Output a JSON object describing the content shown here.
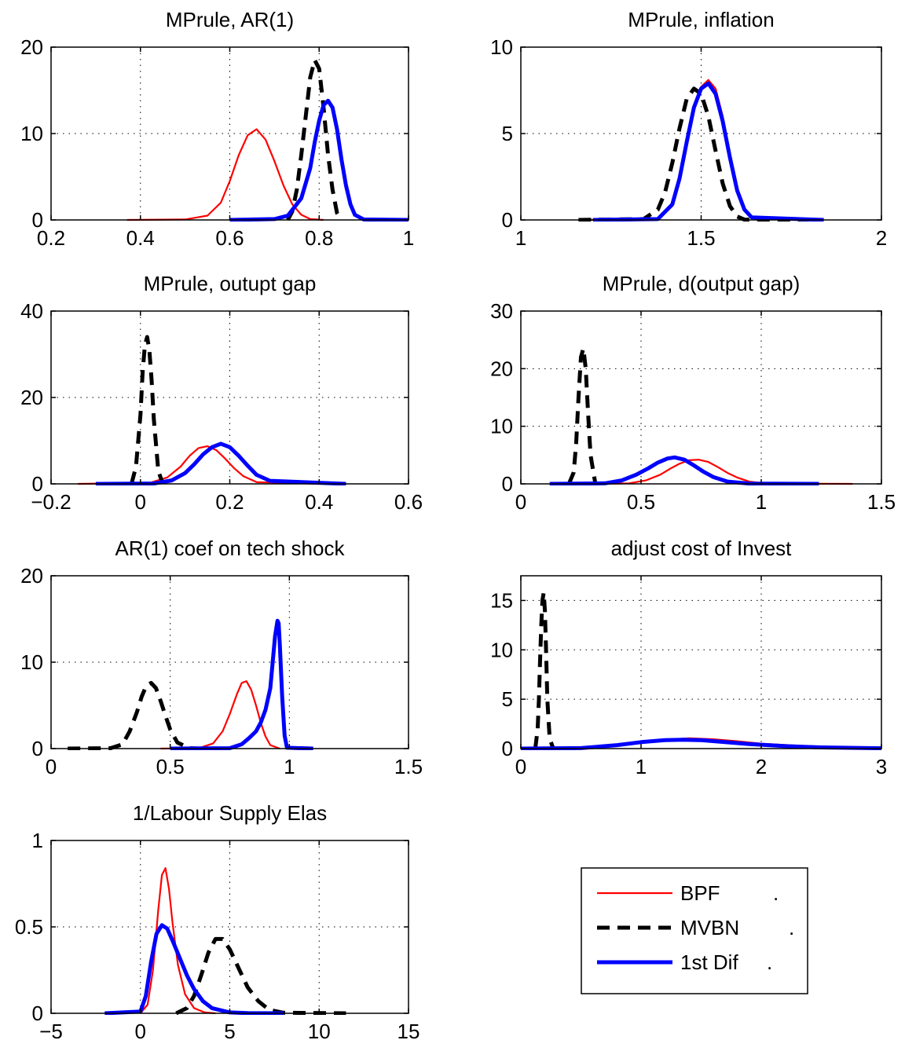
{
  "colors": {
    "BPF": "#ff0000",
    "MVBN": "#000000",
    "1st Dif": "#0000ff"
  },
  "chart_data": [
    {
      "type": "line",
      "title": "MPrule, AR(1)",
      "xlim": [
        0.2,
        1
      ],
      "ylim": [
        0,
        20
      ],
      "xticks": [
        0.2,
        0.4,
        0.6,
        0.8,
        1
      ],
      "xtick_labels": [
        "0.2",
        "0.4",
        "0.6",
        "0.8",
        "1"
      ],
      "yticks": [
        0,
        10,
        20
      ],
      "ytick_labels": [
        "0",
        "10",
        "20"
      ],
      "grid": true,
      "series": [
        {
          "name": "BPF",
          "color": "#ff0000",
          "style": "solid",
          "width": 2.2,
          "x": [
            0.37,
            0.5,
            0.55,
            0.58,
            0.6,
            0.62,
            0.64,
            0.66,
            0.68,
            0.7,
            0.72,
            0.74,
            0.76,
            0.78,
            0.81
          ],
          "y": [
            0,
            0.05,
            0.5,
            2,
            4.5,
            7.5,
            9.8,
            10.5,
            9.3,
            6.8,
            4,
            1.8,
            0.6,
            0.1,
            0
          ]
        },
        {
          "name": "MVBN",
          "color": "#000000",
          "style": "dashed",
          "width": 5,
          "x": [
            0.73,
            0.74,
            0.75,
            0.76,
            0.77,
            0.78,
            0.79,
            0.8,
            0.81,
            0.82,
            0.83,
            0.84,
            0.85
          ],
          "y": [
            0,
            1,
            3.5,
            7.5,
            12,
            16.5,
            18.5,
            17.5,
            13,
            7.5,
            3.5,
            0.8,
            0
          ]
        },
        {
          "name": "1st Dif",
          "color": "#0000ff",
          "style": "solid",
          "width": 5,
          "x": [
            0.6,
            0.7,
            0.73,
            0.76,
            0.78,
            0.79,
            0.8,
            0.81,
            0.82,
            0.83,
            0.84,
            0.85,
            0.86,
            0.87,
            0.88,
            0.9,
            1
          ],
          "y": [
            0,
            0.1,
            0.5,
            2.5,
            6,
            9,
            11.5,
            13.3,
            13.8,
            13,
            10.5,
            7,
            4,
            1.8,
            0.6,
            0.05,
            0
          ]
        }
      ]
    },
    {
      "type": "line",
      "title": "MPrule, inflation",
      "xlim": [
        1,
        2
      ],
      "ylim": [
        0,
        10
      ],
      "xticks": [
        1,
        1.5,
        2
      ],
      "xtick_labels": [
        "1",
        "1.5",
        "2"
      ],
      "yticks": [
        0,
        5,
        10
      ],
      "ytick_labels": [
        "0",
        "5",
        "10"
      ],
      "grid": true,
      "series": [
        {
          "name": "BPF",
          "color": "#ff0000",
          "style": "solid",
          "width": 2.2,
          "x": [
            1.16,
            1.38,
            1.42,
            1.44,
            1.46,
            1.48,
            1.5,
            1.52,
            1.54,
            1.56,
            1.58,
            1.6,
            1.62,
            1.64,
            1.84
          ],
          "y": [
            0,
            0.05,
            0.8,
            2.2,
            4.3,
            6.4,
            7.7,
            8.1,
            7.6,
            6,
            3.8,
            1.8,
            0.6,
            0.1,
            0
          ]
        },
        {
          "name": "MVBN",
          "color": "#000000",
          "style": "dashed",
          "width": 5,
          "x": [
            1.16,
            1.34,
            1.38,
            1.4,
            1.42,
            1.44,
            1.46,
            1.48,
            1.5,
            1.52,
            1.54,
            1.56,
            1.58,
            1.6,
            1.62,
            1.8
          ],
          "y": [
            0,
            0.05,
            0.6,
            1.6,
            3.3,
            5.3,
            7,
            7.6,
            7.3,
            6,
            4,
            2.1,
            0.8,
            0.2,
            0.02,
            0
          ]
        },
        {
          "name": "1st Dif",
          "color": "#0000ff",
          "style": "solid",
          "width": 5,
          "x": [
            1.2,
            1.38,
            1.42,
            1.44,
            1.46,
            1.48,
            1.5,
            1.52,
            1.54,
            1.56,
            1.58,
            1.6,
            1.62,
            1.64,
            1.84
          ],
          "y": [
            0,
            0.05,
            0.9,
            2.4,
            4.5,
            6.5,
            7.6,
            7.9,
            7.3,
            5.7,
            3.6,
            1.7,
            0.6,
            0.15,
            0
          ]
        }
      ]
    },
    {
      "type": "line",
      "title": "MPrule, outupt gap",
      "xlim": [
        -0.2,
        0.6
      ],
      "ylim": [
        0,
        40
      ],
      "xticks": [
        -0.2,
        0,
        0.2,
        0.4,
        0.6
      ],
      "xtick_labels": [
        "−0.2",
        "0",
        "0.2",
        "0.4",
        "0.6"
      ],
      "yticks": [
        0,
        20,
        40
      ],
      "ytick_labels": [
        "0",
        "20",
        "40"
      ],
      "grid": true,
      "series": [
        {
          "name": "BPF",
          "color": "#ff0000",
          "style": "solid",
          "width": 2.2,
          "x": [
            -0.14,
            0.02,
            0.06,
            0.09,
            0.11,
            0.13,
            0.15,
            0.17,
            0.19,
            0.21,
            0.23,
            0.26,
            0.4
          ],
          "y": [
            0,
            0.2,
            1.5,
            4,
            6.5,
            8.3,
            8.7,
            7.8,
            5.8,
            3.6,
            1.8,
            0.4,
            0
          ]
        },
        {
          "name": "MVBN",
          "color": "#000000",
          "style": "dashed",
          "width": 5,
          "x": [
            -0.02,
            -0.01,
            0,
            0.005,
            0.01,
            0.015,
            0.02,
            0.025,
            0.03,
            0.04,
            0.05
          ],
          "y": [
            0,
            4,
            16,
            26,
            32,
            34,
            31,
            24,
            15,
            3,
            0
          ]
        },
        {
          "name": "1st Dif",
          "color": "#0000ff",
          "style": "solid",
          "width": 5,
          "x": [
            -0.1,
            0.03,
            0.07,
            0.1,
            0.12,
            0.14,
            0.16,
            0.18,
            0.2,
            0.22,
            0.24,
            0.26,
            0.29,
            0.46
          ],
          "y": [
            0,
            0.1,
            0.8,
            2.5,
            4.5,
            6.8,
            8.5,
            9.3,
            8.5,
            6.5,
            4.2,
            2.1,
            0.7,
            0
          ]
        }
      ]
    },
    {
      "type": "line",
      "title": "MPrule, d(output gap)",
      "xlim": [
        0,
        1.5
      ],
      "ylim": [
        0,
        30
      ],
      "xticks": [
        0,
        0.5,
        1,
        1.5
      ],
      "xtick_labels": [
        "0",
        "0.5",
        "1",
        "1.5"
      ],
      "yticks": [
        0,
        10,
        20,
        30
      ],
      "ytick_labels": [
        "0",
        "10",
        "20",
        "30"
      ],
      "grid": true,
      "series": [
        {
          "name": "BPF",
          "color": "#ff0000",
          "style": "solid",
          "width": 2.2,
          "x": [
            0.32,
            0.45,
            0.52,
            0.58,
            0.62,
            0.66,
            0.7,
            0.74,
            0.78,
            0.82,
            0.86,
            0.9,
            0.95,
            1.02,
            1.38
          ],
          "y": [
            0,
            0.1,
            0.6,
            1.6,
            2.6,
            3.5,
            4.1,
            4.2,
            3.8,
            2.9,
            1.9,
            1.1,
            0.4,
            0.05,
            0
          ]
        },
        {
          "name": "MVBN",
          "color": "#000000",
          "style": "dashed",
          "width": 5,
          "x": [
            0.2,
            0.22,
            0.23,
            0.24,
            0.25,
            0.26,
            0.27,
            0.28,
            0.29,
            0.31
          ],
          "y": [
            0,
            2,
            7,
            15,
            22,
            23.5,
            20,
            12,
            5,
            0
          ]
        },
        {
          "name": "1st Dif",
          "color": "#0000ff",
          "style": "solid",
          "width": 5,
          "x": [
            0.12,
            0.35,
            0.42,
            0.48,
            0.53,
            0.57,
            0.61,
            0.64,
            0.68,
            0.72,
            0.76,
            0.8,
            0.86,
            0.95,
            1.24
          ],
          "y": [
            0,
            0.1,
            0.6,
            1.6,
            2.7,
            3.7,
            4.4,
            4.6,
            4.2,
            3.2,
            2.1,
            1.2,
            0.4,
            0.05,
            0
          ]
        }
      ]
    },
    {
      "type": "line",
      "title": "AR(1) coef on tech shock",
      "xlim": [
        0,
        1.5
      ],
      "ylim": [
        0,
        20
      ],
      "xticks": [
        0,
        0.5,
        1,
        1.5
      ],
      "xtick_labels": [
        "0",
        "0.5",
        "1",
        "1.5"
      ],
      "yticks": [
        0,
        10,
        20
      ],
      "ytick_labels": [
        "0",
        "10",
        "20"
      ],
      "grid": true,
      "series": [
        {
          "name": "BPF",
          "color": "#ff0000",
          "style": "solid",
          "width": 2.2,
          "x": [
            0.46,
            0.62,
            0.68,
            0.72,
            0.75,
            0.78,
            0.8,
            0.82,
            0.84,
            0.86,
            0.88,
            0.9,
            0.92,
            0.96
          ],
          "y": [
            0,
            0.05,
            0.6,
            2,
            4,
            6.3,
            7.6,
            7.8,
            6.8,
            5,
            3,
            1.4,
            0.4,
            0
          ]
        },
        {
          "name": "MVBN",
          "color": "#000000",
          "style": "dashed",
          "width": 5,
          "x": [
            0.07,
            0.25,
            0.3,
            0.33,
            0.36,
            0.38,
            0.4,
            0.42,
            0.44,
            0.46,
            0.48,
            0.5,
            0.53,
            0.58,
            0.62
          ],
          "y": [
            0,
            0.05,
            0.5,
            2,
            4.2,
            6,
            7.3,
            7.6,
            7,
            5.5,
            3.8,
            2.2,
            0.7,
            0.05,
            0
          ]
        },
        {
          "name": "1st Dif",
          "color": "#0000ff",
          "style": "solid",
          "width": 5,
          "x": [
            0.5,
            0.75,
            0.8,
            0.83,
            0.86,
            0.88,
            0.9,
            0.92,
            0.93,
            0.94,
            0.95,
            0.955,
            0.96,
            0.97,
            0.98,
            0.99,
            1.1
          ],
          "y": [
            0,
            0.05,
            0.5,
            1.2,
            2,
            3,
            4.5,
            7,
            10,
            13,
            14.8,
            14.5,
            12,
            6,
            1.5,
            0.1,
            0
          ]
        }
      ]
    },
    {
      "type": "line",
      "title": "adjust cost of Invest",
      "xlim": [
        0,
        3
      ],
      "ylim": [
        0,
        17.5
      ],
      "xticks": [
        0,
        1,
        2,
        3
      ],
      "xtick_labels": [
        "0",
        "1",
        "2",
        "3"
      ],
      "yticks": [
        0,
        5,
        10,
        15
      ],
      "ytick_labels": [
        "0",
        "5",
        "10",
        "15"
      ],
      "grid": true,
      "series": [
        {
          "name": "BPF",
          "color": "#ff0000",
          "style": "solid",
          "width": 2.2,
          "x": [
            0,
            0.5,
            0.8,
            1,
            1.2,
            1.4,
            1.6,
            1.8,
            2,
            2.3,
            2.6,
            3
          ],
          "y": [
            0,
            0.05,
            0.3,
            0.6,
            0.9,
            1.05,
            0.95,
            0.75,
            0.5,
            0.3,
            0.15,
            0.05
          ]
        },
        {
          "name": "MVBN",
          "color": "#000000",
          "style": "dashed",
          "width": 5,
          "x": [
            0.12,
            0.14,
            0.15,
            0.16,
            0.17,
            0.18,
            0.19,
            0.2,
            0.21,
            0.22,
            0.24,
            0.27
          ],
          "y": [
            0,
            2,
            5,
            9,
            12.5,
            15,
            15.8,
            14,
            10,
            5,
            1,
            0
          ]
        },
        {
          "name": "1st Dif",
          "color": "#0000ff",
          "style": "solid",
          "width": 5,
          "x": [
            0,
            0.5,
            0.8,
            1,
            1.2,
            1.35,
            1.5,
            1.7,
            1.9,
            2.2,
            2.5,
            3
          ],
          "y": [
            0,
            0.05,
            0.35,
            0.65,
            0.85,
            0.9,
            0.85,
            0.65,
            0.45,
            0.25,
            0.12,
            0.03
          ]
        }
      ]
    },
    {
      "type": "line",
      "title": "1/Labour Supply Elas",
      "xlim": [
        -5,
        15
      ],
      "ylim": [
        0,
        1
      ],
      "xticks": [
        -5,
        0,
        5,
        10,
        15
      ],
      "xtick_labels": [
        "−5",
        "0",
        "5",
        "10",
        "15"
      ],
      "yticks": [
        0,
        0.5,
        1
      ],
      "ytick_labels": [
        "0",
        "0.5",
        "1"
      ],
      "grid": true,
      "series": [
        {
          "name": "BPF",
          "color": "#ff0000",
          "style": "solid",
          "width": 2.2,
          "x": [
            0,
            0.4,
            0.7,
            1,
            1.2,
            1.4,
            1.6,
            1.8,
            2.1,
            2.5,
            3,
            3.6,
            4.2
          ],
          "y": [
            0,
            0.05,
            0.25,
            0.6,
            0.8,
            0.84,
            0.72,
            0.52,
            0.28,
            0.11,
            0.03,
            0.005,
            0
          ]
        },
        {
          "name": "MVBN",
          "color": "#000000",
          "style": "dashed",
          "width": 5,
          "x": [
            2,
            2.6,
            3,
            3.4,
            3.8,
            4.2,
            4.6,
            5,
            5.5,
            6,
            6.6,
            7.2,
            8,
            11.5
          ],
          "y": [
            0,
            0.03,
            0.1,
            0.22,
            0.35,
            0.43,
            0.43,
            0.37,
            0.26,
            0.15,
            0.07,
            0.02,
            0.003,
            0
          ]
        },
        {
          "name": "1st Dif",
          "color": "#0000ff",
          "style": "solid",
          "width": 5,
          "x": [
            -2,
            0,
            0.3,
            0.6,
            0.9,
            1.2,
            1.5,
            1.8,
            2.2,
            2.6,
            3,
            3.5,
            4,
            5,
            6,
            8
          ],
          "y": [
            0,
            0.01,
            0.1,
            0.3,
            0.46,
            0.51,
            0.49,
            0.42,
            0.32,
            0.22,
            0.14,
            0.07,
            0.03,
            0.005,
            0.001,
            0
          ]
        }
      ]
    }
  ],
  "legend": {
    "entries": [
      {
        "label": "BPF",
        "suffix": ".",
        "color": "#ff0000",
        "style": "solid",
        "width": 2.2
      },
      {
        "label": "MVBN",
        "suffix": ".",
        "color": "#000000",
        "style": "dashed",
        "width": 5
      },
      {
        "label": "1st Dif",
        "suffix": ".",
        "color": "#0000ff",
        "style": "solid",
        "width": 5
      }
    ]
  }
}
